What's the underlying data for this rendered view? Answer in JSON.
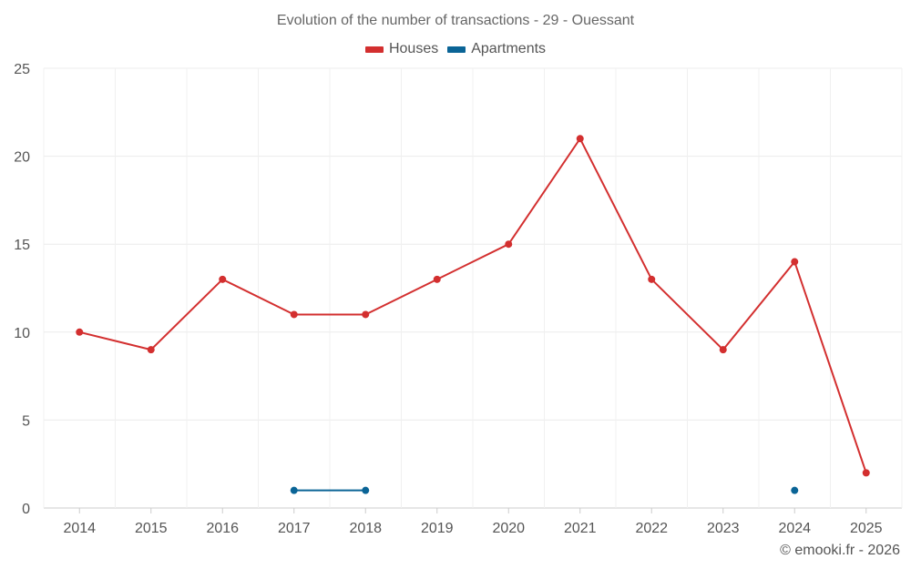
{
  "chart_data": {
    "type": "line",
    "title": "Evolution of the number of transactions - 29 - Ouessant",
    "xlabel": "",
    "ylabel": "",
    "categories": [
      "2014",
      "2015",
      "2016",
      "2017",
      "2018",
      "2019",
      "2020",
      "2021",
      "2022",
      "2023",
      "2024",
      "2025"
    ],
    "ylim": [
      0,
      25
    ],
    "yticks": [
      0,
      5,
      10,
      15,
      20,
      25
    ],
    "legend_position": "top-center",
    "grid": true,
    "series": [
      {
        "name": "Houses",
        "color": "#d32f2f",
        "values": [
          10,
          9,
          13,
          11,
          11,
          13,
          15,
          21,
          13,
          9,
          14,
          2
        ]
      },
      {
        "name": "Apartments",
        "color": "#0a6496",
        "values": [
          null,
          null,
          null,
          1,
          1,
          null,
          null,
          null,
          null,
          null,
          1,
          null
        ]
      }
    ]
  },
  "credit": "© emooki.fr - 2026"
}
